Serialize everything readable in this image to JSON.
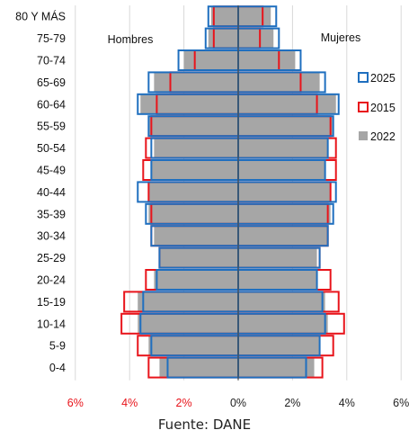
{
  "chart_data": {
    "type": "bar",
    "subtype": "population-pyramid",
    "categories": [
      "80 Y MÁS",
      "75-79",
      "70-74",
      "65-69",
      "60-64",
      "55-59",
      "50-54",
      "45-49",
      "40-44",
      "35-39",
      "30-34",
      "25-29",
      "20-24",
      "15-19",
      "10-14",
      "5-9",
      "0-4"
    ],
    "side_labels": {
      "left": "Hombres",
      "right": "Mujeres"
    },
    "series": [
      {
        "name": "2025",
        "style": "outline",
        "color": "#1F6FBF",
        "hombres": [
          1.1,
          1.2,
          2.2,
          3.3,
          3.7,
          3.3,
          3.2,
          3.2,
          3.7,
          3.4,
          3.2,
          2.9,
          3.0,
          3.5,
          3.6,
          3.2,
          2.6
        ],
        "mujeres": [
          1.4,
          1.5,
          2.3,
          3.2,
          3.7,
          3.5,
          3.3,
          3.2,
          3.6,
          3.5,
          3.3,
          3.0,
          2.9,
          3.1,
          3.2,
          3.0,
          2.5
        ]
      },
      {
        "name": "2015",
        "style": "outline",
        "color": "#E8141B",
        "hombres": [
          0.9,
          0.9,
          1.6,
          2.5,
          3.0,
          3.2,
          3.4,
          3.5,
          3.3,
          3.2,
          3.2,
          2.9,
          3.4,
          4.2,
          4.3,
          3.7,
          3.3
        ],
        "mujeres": [
          0.9,
          0.8,
          1.5,
          2.3,
          2.9,
          3.4,
          3.6,
          3.6,
          3.4,
          3.3,
          3.3,
          3.0,
          3.4,
          3.7,
          3.9,
          3.5,
          3.1
        ]
      },
      {
        "name": "2022",
        "style": "fill",
        "color": "#A6A6A6",
        "hombres": [
          1.0,
          1.1,
          2.0,
          3.1,
          3.6,
          3.3,
          3.1,
          3.2,
          3.3,
          3.3,
          3.1,
          2.9,
          3.1,
          3.7,
          3.7,
          3.3,
          2.9
        ],
        "mujeres": [
          1.2,
          1.3,
          2.1,
          3.0,
          3.6,
          3.5,
          3.3,
          3.2,
          3.4,
          3.4,
          3.3,
          2.9,
          2.9,
          3.2,
          3.3,
          3.0,
          2.8
        ]
      }
    ],
    "legend": {
      "items": [
        "2025",
        "2015",
        "2022"
      ],
      "placement": "right"
    },
    "x_ticks": [
      "6%",
      "4%",
      "2%",
      "0%",
      "2%",
      "4%",
      "6%"
    ],
    "x_tick_colors": [
      "#E8141B",
      "#E8141B",
      "#E8141B",
      "#222222",
      "#222222",
      "#222222",
      "#222222"
    ],
    "xlim": [
      -6,
      6
    ],
    "xlabel": "",
    "ylabel": ""
  },
  "source_caption": "Fuente: DANE"
}
